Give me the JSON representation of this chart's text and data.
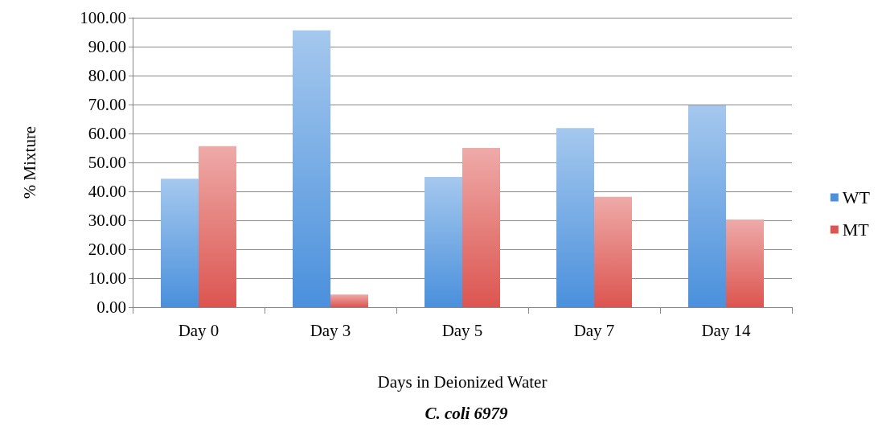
{
  "chart_data": {
    "type": "bar",
    "title": "C. coli 6979",
    "xlabel": "Days in Deionized Water",
    "ylabel": "% Mixture",
    "categories": [
      "Day 0",
      "Day 3",
      "Day 5",
      "Day 7",
      "Day 14"
    ],
    "series": [
      {
        "name": "WT",
        "color": "#4a90dc",
        "values": [
          44.4,
          95.6,
          45.0,
          61.9,
          69.7
        ]
      },
      {
        "name": "MT",
        "color": "#dc5550",
        "values": [
          55.6,
          4.4,
          55.0,
          38.1,
          30.3
        ]
      }
    ],
    "ylim": [
      0,
      100
    ],
    "yticks": [
      {
        "value": 0,
        "label": "0.00"
      },
      {
        "value": 10,
        "label": "10.00"
      },
      {
        "value": 20,
        "label": "20.00"
      },
      {
        "value": 30,
        "label": "30.00"
      },
      {
        "value": 40,
        "label": "40.00"
      },
      {
        "value": 50,
        "label": "50.00"
      },
      {
        "value": 60,
        "label": "60.00"
      },
      {
        "value": 70,
        "label": "70.00"
      },
      {
        "value": 80,
        "label": "80.00"
      },
      {
        "value": 90,
        "label": "90.00"
      },
      {
        "value": 100,
        "label": "100.00"
      }
    ],
    "grid": true,
    "legend": "right"
  }
}
